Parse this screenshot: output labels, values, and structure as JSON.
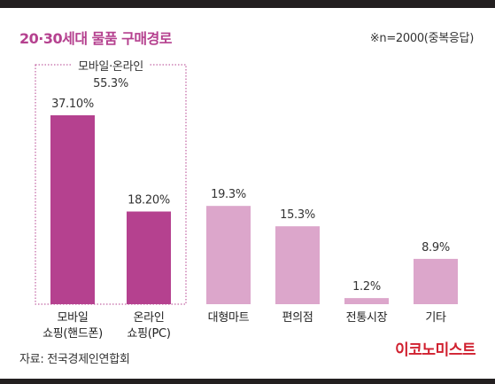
{
  "header": {
    "title": "20·30세대 물품 구매경로",
    "note": "※n=2000(중복응답)"
  },
  "footer": {
    "source": "자료: 전국경제인연합회",
    "logo": "이코노미스트"
  },
  "chart_data": {
    "type": "bar",
    "title": "20·30세대 물품 구매경로",
    "xlabel": "",
    "ylabel": "",
    "ylim": [
      0,
      40
    ],
    "grid": false,
    "categories": [
      [
        "모바일",
        "쇼핑(핸드폰)"
      ],
      [
        "온라인",
        "쇼핑(PC)"
      ],
      [
        "대형마트"
      ],
      [
        "편의점"
      ],
      [
        "전통시장"
      ],
      [
        "기타"
      ]
    ],
    "values": [
      37.1,
      18.2,
      19.3,
      15.3,
      1.2,
      8.9
    ],
    "value_labels": [
      "37.10%",
      "18.20%",
      "19.3%",
      "15.3%",
      "1.2%",
      "8.9%"
    ],
    "group_annotation": {
      "label_line1": "모바일·온라인",
      "label_line2": "55.3%",
      "value": 55.3,
      "spans_categories": [
        0,
        1
      ]
    },
    "colors": {
      "online": "#b5418f",
      "offline": "#dca6cb",
      "group_box": "#b5418f"
    }
  }
}
